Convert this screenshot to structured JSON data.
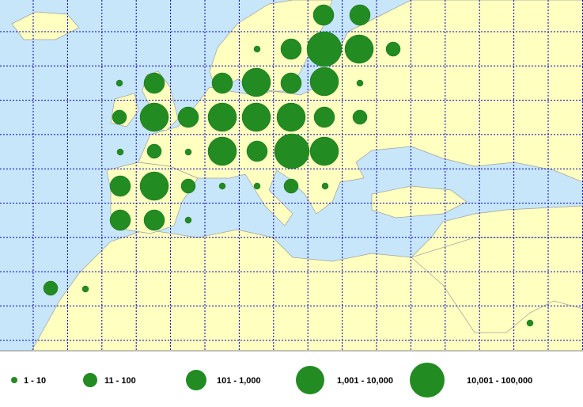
{
  "legend": {
    "items": [
      "1 - 10",
      "11 - 100",
      "101 - 1,000",
      "1,001 - 10,000",
      "10,001 - 100,000"
    ]
  }
}
